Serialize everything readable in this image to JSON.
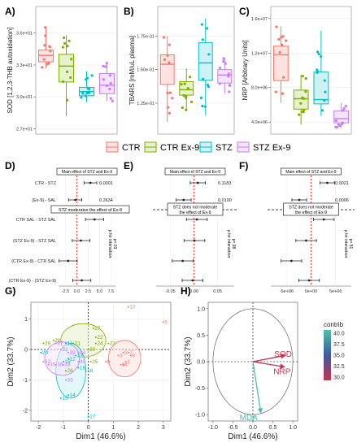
{
  "colors": {
    "CTR": "#f8766d",
    "CTR Ex-9": "#7cae00",
    "STZ": "#00bfc4",
    "STZ Ex-9": "#c77cff",
    "contrib_high": "#4ec0a8",
    "contrib_mid": "#3b5aa0",
    "contrib_low": "#c8324d"
  },
  "groups": [
    "CTR",
    "CTR Ex-9",
    "STZ",
    "STZ Ex-9"
  ],
  "panels": {
    "A": "A)",
    "B": "B)",
    "C": "C)",
    "D": "D)",
    "E": "E)",
    "F": "F)",
    "G": "G)",
    "H": "H)"
  },
  "chart_data": [
    {
      "id": "A",
      "type": "box",
      "ylabel": "SOD [1,2,3-THB autoxidation]",
      "yticks": [
        "3.6e+01",
        "3.3e+01",
        "3.0e+01",
        "2.7e+01"
      ],
      "ylim": [
        26.5,
        38.5
      ],
      "boxes": [
        {
          "group": "CTR",
          "q1": 33.3,
          "median": 33.9,
          "q3": 34.4,
          "lo": 32.7,
          "hi": 36.6
        },
        {
          "group": "CTR Ex-9",
          "q1": 31.4,
          "median": 32.9,
          "q3": 34.0,
          "lo": 28.2,
          "hi": 35.8
        },
        {
          "group": "STZ",
          "q1": 30.1,
          "median": 30.5,
          "q3": 30.9,
          "lo": 29.5,
          "hi": 32.4
        },
        {
          "group": "STZ Ex-9",
          "q1": 30.3,
          "median": 31.1,
          "q3": 32.2,
          "lo": 29.6,
          "hi": 33.3
        }
      ]
    },
    {
      "id": "B",
      "type": "box",
      "ylabel": "TBARS [mM/uL plasma]",
      "yticks": [
        "1.75e-01",
        "1.50e-01",
        "1.25e-01"
      ],
      "ylim": [
        0.102,
        0.197
      ],
      "boxes": [
        {
          "group": "CTR",
          "q1": 0.139,
          "median": 0.154,
          "q3": 0.161,
          "lo": 0.111,
          "hi": 0.175
        },
        {
          "group": "CTR Ex-9",
          "q1": 0.131,
          "median": 0.135,
          "q3": 0.141,
          "lo": 0.119,
          "hi": 0.151
        },
        {
          "group": "STZ",
          "q1": 0.142,
          "median": 0.155,
          "q3": 0.17,
          "lo": 0.116,
          "hi": 0.188
        },
        {
          "group": "STZ Ex-9",
          "q1": 0.14,
          "median": 0.146,
          "q3": 0.15,
          "lo": 0.132,
          "hi": 0.159
        }
      ]
    },
    {
      "id": "C",
      "type": "box",
      "ylabel": "NRP [Arbitrary Units]",
      "yticks": [
        "1.6e+07",
        "1.2e+07",
        "8.0e+06",
        "4.0e+06"
      ],
      "ylim": [
        2600000,
        17400000
      ],
      "boxes": [
        {
          "group": "CTR",
          "q1": 8800000,
          "median": 11800000,
          "q3": 12800000,
          "lo": 6200000,
          "hi": 15100000
        },
        {
          "group": "CTR Ex-9",
          "q1": 5500000,
          "median": 6700000,
          "q3": 7700000,
          "lo": 3700000,
          "hi": 9500000
        },
        {
          "group": "STZ",
          "q1": 6100000,
          "median": 6600000,
          "q3": 9800000,
          "lo": 4700000,
          "hi": 14600000
        },
        {
          "group": "STZ Ex-9",
          "q1": 3900000,
          "median": 4400000,
          "q3": 5300000,
          "lo": 3300000,
          "hi": 6200000
        }
      ]
    },
    {
      "id": "D",
      "type": "forest",
      "xticks": [
        "-2.5",
        "0.0",
        "2.5",
        "5.0",
        "7.5"
      ],
      "xtick_values": [
        -2.5,
        0,
        2.5,
        5,
        7.5
      ],
      "xlim": [
        -4,
        8.5
      ],
      "rows": [
        "CTR - STZ",
        "(Ex-9) - SAL",
        "CTR SAL - STZ SAL",
        "(STZ Ex-9) - STZ SAL",
        "(CTR Ex-9) - CTR SAL",
        "(CTR Ex-9) - (STZ Ex-9)"
      ],
      "est": [
        {
          "m": 3.0,
          "lo": 1.6,
          "hi": 4.4
        },
        {
          "m": -0.3,
          "lo": -1.8,
          "hi": 1.1
        },
        {
          "m": 3.9,
          "lo": 1.9,
          "hi": 5.9
        },
        {
          "m": 0.9,
          "lo": -1.0,
          "hi": 2.9
        },
        {
          "m": -1.9,
          "lo": -3.9,
          "hi": 0.1
        },
        {
          "m": 1.1,
          "lo": -0.9,
          "hi": 3.1
        }
      ],
      "main_label": "Main effect of STZ and Ex-9",
      "moderation_label": "STZ moderates the effect of Ex-9",
      "pvals": [
        "0.0001",
        "0.2634"
      ],
      "p_interaction": "p for interaction",
      "p_value": "p=.03"
    },
    {
      "id": "E",
      "type": "forest",
      "xticks": [
        "-0.05",
        "0.00",
        "0.05"
      ],
      "xtick_values": [
        -0.05,
        0,
        0.05
      ],
      "xlim": [
        -0.08,
        0.085
      ],
      "est": [
        {
          "m": 0.008,
          "lo": -0.008,
          "hi": 0.024
        },
        {
          "m": -0.022,
          "lo": -0.038,
          "hi": -0.006
        },
        {
          "m": 0.006,
          "lo": -0.016,
          "hi": 0.028
        },
        {
          "m": 0.001,
          "lo": -0.021,
          "hi": 0.023
        },
        {
          "m": -0.024,
          "lo": -0.046,
          "hi": -0.002
        },
        {
          "m": -0.003,
          "lo": -0.025,
          "hi": 0.019
        }
      ],
      "main_label": "Main effect of STZ and Ex-9",
      "moderation_label": "STZ does not moderate the effect of Ex-9",
      "pvals": [
        "0.1183",
        "0.0100"
      ],
      "p_interaction": "p for interaction",
      "p_value": "p=.98"
    },
    {
      "id": "F",
      "type": "forest",
      "xticks": [
        "-5e+06",
        "0e+00",
        "5e+06"
      ],
      "xtick_values": [
        -5000000,
        0,
        5000000
      ],
      "xlim": [
        -8200000,
        8200000
      ],
      "est": [
        {
          "m": 3300000,
          "lo": 1800000,
          "hi": 4800000
        },
        {
          "m": -2400000,
          "lo": -3900000,
          "hi": -900000
        },
        {
          "m": 2600000,
          "lo": 500000,
          "hi": 4700000
        },
        {
          "m": -1000000,
          "lo": -3100000,
          "hi": 1100000
        },
        {
          "m": -4000000,
          "lo": -6100000,
          "hi": -1900000
        },
        {
          "m": -400000,
          "lo": -2500000,
          "hi": 1700000
        }
      ],
      "main_label": "Main effect of STZ and Ex-9",
      "moderation_label": "STZ does not moderate the effect of Ex-9",
      "pvals": [
        "0.0021",
        "0.0006"
      ],
      "p_interaction": "p for interaction",
      "p_value": "p=.51"
    },
    {
      "id": "G",
      "type": "scatter",
      "xlabel": "Dim1 (46.6%)",
      "ylabel": "Dim2 (33.7%)",
      "xticks": [
        "-2",
        "-1",
        "0",
        "1",
        "2",
        "3"
      ],
      "xtick_values": [
        -2,
        -1,
        0,
        1,
        2,
        3
      ],
      "yticks": [
        "1",
        "0",
        "-1",
        "-2"
      ],
      "ytick_values": [
        1,
        0,
        -1,
        -2
      ],
      "xlim": [
        -2.3,
        3.3
      ],
      "ylim": [
        -2.35,
        1.55
      ],
      "points": [
        {
          "l": "10",
          "x": 1.6,
          "y": 1.4,
          "g": "CTR"
        },
        {
          "l": "5",
          "x": 3.0,
          "y": 0.9,
          "g": "CTR"
        },
        {
          "l": "7",
          "x": 1.6,
          "y": -0.1,
          "g": "CTR"
        },
        {
          "l": "2",
          "x": 1.4,
          "y": -0.1,
          "g": "CTR"
        },
        {
          "l": "8",
          "x": 1.7,
          "y": -0.2,
          "g": "CTR"
        },
        {
          "l": "6",
          "x": 1.3,
          "y": -0.5,
          "g": "CTR"
        },
        {
          "l": "1",
          "x": 1.5,
          "y": -0.4,
          "g": "CTR"
        },
        {
          "l": "3",
          "x": 1.2,
          "y": -0.2,
          "g": "CTR"
        },
        {
          "l": "4",
          "x": 1.4,
          "y": -0.5,
          "g": "CTR"
        },
        {
          "l": "9",
          "x": 0.7,
          "y": -0.4,
          "g": "CTR"
        },
        {
          "l": "23",
          "x": 0.8,
          "y": 0.2,
          "g": "CTR Ex-9"
        },
        {
          "l": "22",
          "x": 0.3,
          "y": 0.4,
          "g": "CTR Ex-9"
        },
        {
          "l": "27",
          "x": 0.2,
          "y": 0.7,
          "g": "CTR Ex-9"
        },
        {
          "l": "24",
          "x": 0.3,
          "y": 0.2,
          "g": "CTR Ex-9"
        },
        {
          "l": "29",
          "x": -1.8,
          "y": 0.2,
          "g": "CTR Ex-9"
        },
        {
          "l": "28",
          "x": -1.4,
          "y": 0.3,
          "g": "CTR Ex-9"
        },
        {
          "l": "30",
          "x": 0.0,
          "y": 0.0,
          "g": "CTR Ex-9"
        },
        {
          "l": "26",
          "x": -0.9,
          "y": -0.7,
          "g": "CTR Ex-9"
        },
        {
          "l": "21",
          "x": -0.6,
          "y": 0.2,
          "g": "CTR Ex-9"
        },
        {
          "l": "25",
          "x": 0.1,
          "y": -0.4,
          "g": "CTR Ex-9"
        },
        {
          "l": "20",
          "x": -1.9,
          "y": -0.1,
          "g": "STZ"
        },
        {
          "l": "11",
          "x": -0.9,
          "y": 0.2,
          "g": "STZ"
        },
        {
          "l": "12",
          "x": -0.8,
          "y": -0.3,
          "g": "STZ"
        },
        {
          "l": "13",
          "x": -0.5,
          "y": -0.2,
          "g": "STZ"
        },
        {
          "l": "15",
          "x": -1.0,
          "y": -0.4,
          "g": "STZ"
        },
        {
          "l": "16",
          "x": -0.4,
          "y": -0.6,
          "g": "STZ"
        },
        {
          "l": "18",
          "x": -0.1,
          "y": -0.7,
          "g": "STZ"
        },
        {
          "l": "19",
          "x": -1.1,
          "y": -1.6,
          "g": "STZ"
        },
        {
          "l": "14",
          "x": -0.8,
          "y": -1.5,
          "g": "STZ"
        },
        {
          "l": "17",
          "x": 0.0,
          "y": -2.2,
          "g": "STZ"
        },
        {
          "l": "37",
          "x": -1.3,
          "y": 0.2,
          "g": "STZ Ex-9"
        },
        {
          "l": "31",
          "x": -1.1,
          "y": 0.0,
          "g": "STZ Ex-9"
        },
        {
          "l": "34",
          "x": -0.4,
          "y": -0.1,
          "g": "STZ Ex-9"
        },
        {
          "l": "32",
          "x": -1.8,
          "y": -0.4,
          "g": "STZ Ex-9"
        },
        {
          "l": "35",
          "x": -1.6,
          "y": -0.5,
          "g": "STZ Ex-9"
        },
        {
          "l": "38",
          "x": -1.0,
          "y": -0.5,
          "g": "STZ Ex-9"
        },
        {
          "l": "36",
          "x": -1.3,
          "y": -0.5,
          "g": "STZ Ex-9"
        },
        {
          "l": "40",
          "x": -0.4,
          "y": -0.4,
          "g": "STZ Ex-9"
        },
        {
          "l": "39",
          "x": -0.8,
          "y": -0.1,
          "g": "STZ Ex-9"
        },
        {
          "l": "33",
          "x": -0.9,
          "y": -1.0,
          "g": "STZ Ex-9"
        }
      ],
      "ellipses": [
        {
          "g": "CTR",
          "cx": 1.45,
          "cy": -0.3,
          "rx": 0.65,
          "ry": 0.6
        },
        {
          "g": "CTR Ex-9",
          "cx": -0.2,
          "cy": 0.3,
          "rx": 0.9,
          "ry": 0.55
        },
        {
          "g": "STZ",
          "cx": -0.7,
          "cy": -0.7,
          "rx": 0.6,
          "ry": 0.9
        },
        {
          "g": "STZ Ex-9",
          "cx": -1.05,
          "cy": -0.3,
          "rx": 0.7,
          "ry": 0.55
        }
      ]
    },
    {
      "id": "H",
      "type": "correlation_circle",
      "xlabel": "Dim1 (46.6%)",
      "ylabel": "Dim2 (33.7%)",
      "xticks": [
        "-1.0",
        "-0.5",
        "0.0",
        "0.5",
        "1.0"
      ],
      "xtick_values": [
        -1,
        -0.5,
        0,
        0.5,
        1
      ],
      "yticks": [
        "1.0",
        "0.5",
        "0.0",
        "-0.5",
        "-1.0"
      ],
      "ytick_values": [
        1,
        0.5,
        0,
        -0.5,
        -1
      ],
      "vectors": [
        {
          "name": "SOD",
          "x": 0.82,
          "y": 0.12,
          "contrib": 29.5
        },
        {
          "name": "NRP",
          "x": 0.8,
          "y": -0.1,
          "contrib": 30.5
        },
        {
          "name": "MDA",
          "x": 0.2,
          "y": -0.97,
          "contrib": 40.0
        }
      ],
      "legend_title": "contrib",
      "legend_ticks": [
        "40.0",
        "37.5",
        "35.0",
        "32.5",
        "30.0"
      ]
    }
  ]
}
